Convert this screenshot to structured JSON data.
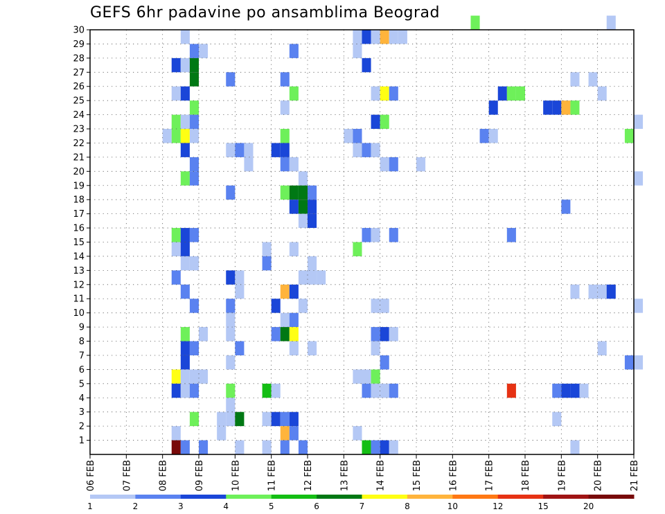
{
  "chart_data": {
    "type": "heatmap",
    "title": "GEFS 6hr padavine po ansamblima Beograd",
    "xlabel": "",
    "ylabel": "",
    "x_ticks": [
      "06 FEB",
      "07 FEB",
      "08 FEB",
      "09 FEB",
      "10 FEB",
      "11 FEB",
      "12 FEB",
      "13 FEB",
      "14 FEB",
      "15 FEB",
      "16 FEB",
      "17 FEB",
      "18 FEB",
      "19 FEB",
      "20 FEB",
      "21 FEB"
    ],
    "x_range": [
      "06 FEB 00Z",
      "21 FEB 00Z"
    ],
    "x_unit": "days (6-hourly steps)",
    "y_ticks": [
      1,
      2,
      3,
      4,
      5,
      6,
      7,
      8,
      9,
      10,
      11,
      12,
      13,
      14,
      15,
      16,
      17,
      18,
      19,
      20,
      21,
      22,
      23,
      24,
      25,
      26,
      27,
      28,
      29,
      30
    ],
    "y_range": [
      0,
      30
    ],
    "grid": true,
    "colorbar": {
      "position": "bottom",
      "labels": [
        "1",
        "2",
        "3",
        "4",
        "5",
        "6",
        "7",
        "8",
        "10",
        "12",
        "15",
        "20"
      ],
      "bins": [
        {
          "min": 1,
          "max": 2,
          "color": "#b4c8f5"
        },
        {
          "min": 2,
          "max": 3,
          "color": "#5a82f0"
        },
        {
          "min": 3,
          "max": 4,
          "color": "#1a46d8"
        },
        {
          "min": 4,
          "max": 5,
          "color": "#6ef05a"
        },
        {
          "min": 5,
          "max": 6,
          "color": "#14be14"
        },
        {
          "min": 6,
          "max": 7,
          "color": "#007814"
        },
        {
          "min": 7,
          "max": 8,
          "color": "#ffff14"
        },
        {
          "min": 8,
          "max": 10,
          "color": "#ffb43c"
        },
        {
          "min": 10,
          "max": 12,
          "color": "#ff7814"
        },
        {
          "min": 12,
          "max": 15,
          "color": "#e63214"
        },
        {
          "min": 15,
          "max": 20,
          "color": "#a01414"
        },
        {
          "min": 20,
          "max": null,
          "color": "#780a0a"
        }
      ]
    },
    "cells_note": "each cell: [day offset from 06 FEB 00Z, ensemble member (1-30, 0 = control), bin index into colorbar.bins]",
    "cells": [
      [
        10.5,
        30,
        3
      ],
      [
        14.25,
        30,
        0
      ],
      [
        2.5,
        29,
        0
      ],
      [
        7.25,
        29,
        0
      ],
      [
        7.5,
        29,
        2
      ],
      [
        7.75,
        29,
        0
      ],
      [
        7.75,
        29,
        0
      ],
      [
        8.0,
        29,
        7
      ],
      [
        8.25,
        29,
        0
      ],
      [
        8.5,
        29,
        0
      ],
      [
        2.75,
        28,
        1
      ],
      [
        3.0,
        28,
        0
      ],
      [
        5.5,
        28,
        1
      ],
      [
        7.25,
        28,
        0
      ],
      [
        2.25,
        27,
        2
      ],
      [
        2.5,
        27,
        0
      ],
      [
        2.75,
        27,
        5
      ],
      [
        7.5,
        27,
        2
      ],
      [
        2.75,
        26,
        5
      ],
      [
        3.75,
        26,
        1
      ],
      [
        5.25,
        26,
        1
      ],
      [
        13.25,
        26,
        0
      ],
      [
        13.75,
        26,
        0
      ],
      [
        2.25,
        25,
        0
      ],
      [
        2.5,
        25,
        2
      ],
      [
        5.5,
        25,
        3
      ],
      [
        7.75,
        25,
        0
      ],
      [
        8.0,
        25,
        6
      ],
      [
        8.25,
        25,
        1
      ],
      [
        11.25,
        25,
        2
      ],
      [
        11.5,
        25,
        3
      ],
      [
        11.75,
        25,
        3
      ],
      [
        14.0,
        25,
        0
      ],
      [
        2.75,
        24,
        3
      ],
      [
        5.25,
        24,
        0
      ],
      [
        11.0,
        24,
        2
      ],
      [
        12.5,
        24,
        2
      ],
      [
        12.75,
        24,
        2
      ],
      [
        13.0,
        24,
        7
      ],
      [
        13.25,
        24,
        3
      ],
      [
        2.25,
        23,
        3
      ],
      [
        2.5,
        23,
        0
      ],
      [
        2.75,
        23,
        1
      ],
      [
        7.75,
        23,
        2
      ],
      [
        8.0,
        23,
        3
      ],
      [
        15.0,
        23,
        0
      ],
      [
        2.0,
        22,
        0
      ],
      [
        2.25,
        22,
        3
      ],
      [
        2.5,
        22,
        6
      ],
      [
        2.75,
        22,
        0
      ],
      [
        5.25,
        22,
        3
      ],
      [
        7.0,
        22,
        0
      ],
      [
        7.25,
        22,
        1
      ],
      [
        10.75,
        22,
        1
      ],
      [
        11.0,
        22,
        0
      ],
      [
        14.75,
        22,
        3
      ],
      [
        2.5,
        21,
        2
      ],
      [
        3.75,
        21,
        0
      ],
      [
        4.0,
        21,
        1
      ],
      [
        4.25,
        21,
        0
      ],
      [
        5.0,
        21,
        2
      ],
      [
        5.25,
        21,
        2
      ],
      [
        7.25,
        21,
        0
      ],
      [
        7.5,
        21,
        1
      ],
      [
        7.75,
        21,
        0
      ],
      [
        2.75,
        20,
        1
      ],
      [
        4.25,
        20,
        0
      ],
      [
        5.25,
        20,
        1
      ],
      [
        5.5,
        20,
        0
      ],
      [
        8.0,
        20,
        0
      ],
      [
        8.25,
        20,
        1
      ],
      [
        9.0,
        20,
        0
      ],
      [
        2.5,
        19,
        3
      ],
      [
        2.75,
        19,
        1
      ],
      [
        5.75,
        19,
        0
      ],
      [
        15.0,
        19,
        0
      ],
      [
        3.75,
        18,
        1
      ],
      [
        5.25,
        18,
        3
      ],
      [
        5.5,
        18,
        5
      ],
      [
        5.75,
        18,
        5
      ],
      [
        6.0,
        18,
        1
      ],
      [
        5.5,
        17,
        2
      ],
      [
        5.75,
        17,
        5
      ],
      [
        6.0,
        17,
        2
      ],
      [
        13.0,
        17,
        1
      ],
      [
        5.75,
        16,
        0
      ],
      [
        6.0,
        16,
        2
      ],
      [
        2.25,
        15,
        3
      ],
      [
        2.5,
        15,
        2
      ],
      [
        2.75,
        15,
        1
      ],
      [
        7.5,
        15,
        1
      ],
      [
        7.75,
        15,
        0
      ],
      [
        8.25,
        15,
        1
      ],
      [
        11.5,
        15,
        1
      ],
      [
        2.25,
        14,
        0
      ],
      [
        2.5,
        14,
        2
      ],
      [
        4.75,
        14,
        0
      ],
      [
        5.5,
        14,
        0
      ],
      [
        7.25,
        14,
        3
      ],
      [
        2.5,
        13,
        0
      ],
      [
        2.75,
        13,
        0
      ],
      [
        4.75,
        13,
        1
      ],
      [
        6.0,
        13,
        0
      ],
      [
        5.75,
        12,
        0
      ],
      [
        6.0,
        12,
        0
      ],
      [
        6.25,
        12,
        0
      ],
      [
        2.25,
        12,
        1
      ],
      [
        3.75,
        12,
        2
      ],
      [
        4.0,
        12,
        0
      ],
      [
        2.5,
        11,
        1
      ],
      [
        4.0,
        11,
        0
      ],
      [
        5.25,
        11,
        7
      ],
      [
        5.5,
        11,
        2
      ],
      [
        13.25,
        11,
        0
      ],
      [
        13.75,
        11,
        0
      ],
      [
        14.0,
        11,
        0
      ],
      [
        14.25,
        11,
        2
      ],
      [
        2.75,
        10,
        1
      ],
      [
        3.75,
        10,
        1
      ],
      [
        5.0,
        10,
        2
      ],
      [
        5.75,
        10,
        0
      ],
      [
        7.75,
        10,
        0
      ],
      [
        8.0,
        10,
        0
      ],
      [
        15.0,
        10,
        0
      ],
      [
        3.75,
        9,
        0
      ],
      [
        5.25,
        9,
        0
      ],
      [
        5.5,
        9,
        1
      ],
      [
        2.5,
        8,
        3
      ],
      [
        3.0,
        8,
        0
      ],
      [
        3.75,
        8,
        0
      ],
      [
        5.0,
        8,
        1
      ],
      [
        5.25,
        8,
        5
      ],
      [
        5.5,
        8,
        6
      ],
      [
        7.75,
        8,
        1
      ],
      [
        8.0,
        8,
        2
      ],
      [
        8.25,
        8,
        0
      ],
      [
        2.5,
        7,
        2
      ],
      [
        2.75,
        7,
        1
      ],
      [
        4.0,
        7,
        1
      ],
      [
        5.5,
        7,
        0
      ],
      [
        6.0,
        7,
        0
      ],
      [
        7.75,
        7,
        0
      ],
      [
        14.0,
        7,
        0
      ],
      [
        2.5,
        6,
        2
      ],
      [
        3.75,
        6,
        0
      ],
      [
        8.0,
        6,
        1
      ],
      [
        14.75,
        6,
        1
      ],
      [
        15.0,
        6,
        0
      ],
      [
        2.25,
        5,
        6
      ],
      [
        2.5,
        5,
        0
      ],
      [
        2.75,
        5,
        0
      ],
      [
        3.0,
        5,
        0
      ],
      [
        7.25,
        5,
        0
      ],
      [
        7.5,
        5,
        0
      ],
      [
        7.75,
        5,
        3
      ],
      [
        2.25,
        4,
        2
      ],
      [
        2.5,
        4,
        0
      ],
      [
        2.75,
        4,
        1
      ],
      [
        3.75,
        4,
        3
      ],
      [
        4.75,
        4,
        4
      ],
      [
        5.0,
        4,
        0
      ],
      [
        7.5,
        4,
        1
      ],
      [
        7.75,
        4,
        0
      ],
      [
        8.0,
        4,
        0
      ],
      [
        8.25,
        4,
        1
      ],
      [
        11.5,
        4,
        9
      ],
      [
        12.75,
        4,
        1
      ],
      [
        13.0,
        4,
        2
      ],
      [
        13.25,
        4,
        2
      ],
      [
        13.5,
        4,
        0
      ],
      [
        3.75,
        3,
        0
      ],
      [
        2.75,
        2,
        3
      ],
      [
        3.5,
        2,
        0
      ],
      [
        3.75,
        2,
        0
      ],
      [
        4.0,
        2,
        5
      ],
      [
        4.75,
        2,
        0
      ],
      [
        5.0,
        2,
        2
      ],
      [
        5.25,
        2,
        1
      ],
      [
        5.5,
        2,
        2
      ],
      [
        12.75,
        2,
        0
      ],
      [
        2.25,
        1,
        0
      ],
      [
        3.5,
        1,
        0
      ],
      [
        5.25,
        1,
        7
      ],
      [
        5.5,
        1,
        1
      ],
      [
        7.25,
        1,
        0
      ],
      [
        2.25,
        0,
        11
      ],
      [
        2.5,
        0,
        1
      ],
      [
        3.0,
        0,
        1
      ],
      [
        4.0,
        0,
        0
      ],
      [
        4.75,
        0,
        0
      ],
      [
        5.25,
        0,
        1
      ],
      [
        5.75,
        0,
        1
      ],
      [
        7.5,
        0,
        4
      ],
      [
        7.75,
        0,
        1
      ],
      [
        8.0,
        0,
        2
      ],
      [
        8.25,
        0,
        0
      ],
      [
        13.25,
        0,
        0
      ]
    ]
  }
}
